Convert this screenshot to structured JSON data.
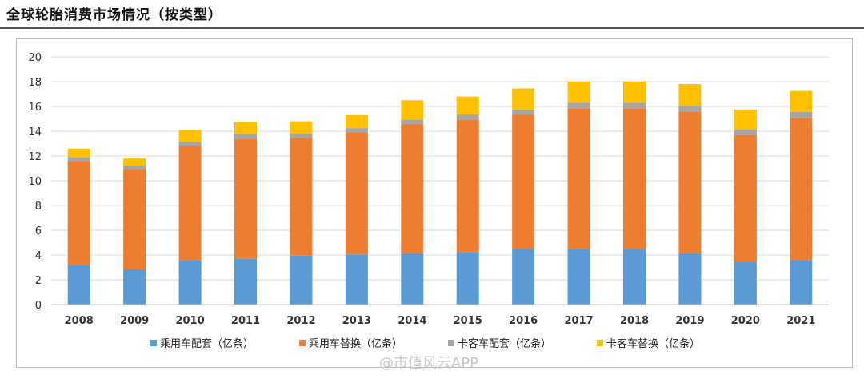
{
  "header": {
    "title": "全球轮胎消费市场情况（按类型）"
  },
  "watermark": {
    "text": "@市值风云APP"
  },
  "chart_data": {
    "type": "bar",
    "stacked": true,
    "title": "",
    "xlabel": "",
    "ylabel": "",
    "categories": [
      "2008",
      "2009",
      "2010",
      "2011",
      "2012",
      "2013",
      "2014",
      "2015",
      "2016",
      "2017",
      "2018",
      "2019",
      "2020",
      "2021"
    ],
    "ylim": [
      0,
      20
    ],
    "yticks": [
      0,
      2,
      4,
      6,
      8,
      10,
      12,
      14,
      16,
      18,
      20
    ],
    "grid": true,
    "legend_position": "bottom",
    "series": [
      {
        "name": "乘用车配套（亿条）",
        "color": "#5b9bd5",
        "values": [
          3.2,
          2.85,
          3.6,
          3.7,
          3.95,
          4.05,
          4.15,
          4.2,
          4.45,
          4.5,
          4.45,
          4.15,
          3.45,
          3.55
        ]
      },
      {
        "name": "乘用车替换（亿条）",
        "color": "#ed7d31",
        "values": [
          8.4,
          8.05,
          9.2,
          9.7,
          9.5,
          9.85,
          10.45,
          10.75,
          10.9,
          11.35,
          11.4,
          11.45,
          10.25,
          11.5
        ]
      },
      {
        "name": "卡客车配套（亿条）",
        "color": "#a5a5a5",
        "values": [
          0.3,
          0.3,
          0.3,
          0.35,
          0.35,
          0.35,
          0.35,
          0.4,
          0.4,
          0.45,
          0.45,
          0.45,
          0.45,
          0.5
        ]
      },
      {
        "name": "卡客车替换（亿条）",
        "color": "#ffc000",
        "values": [
          0.7,
          0.6,
          1.0,
          1.0,
          1.0,
          1.05,
          1.55,
          1.45,
          1.7,
          1.7,
          1.7,
          1.75,
          1.6,
          1.7
        ]
      }
    ]
  }
}
